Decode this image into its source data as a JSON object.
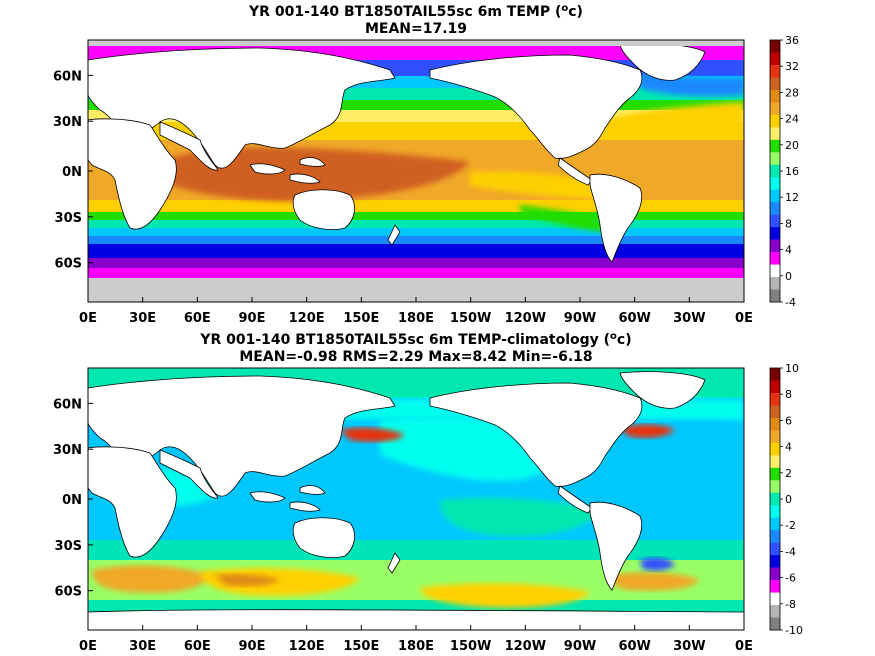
{
  "panels": [
    {
      "title_main": "YR 001-140 BT1850TAIL55sc 6m TEMP (",
      "title_sup": "o",
      "title_end": "c)",
      "stats": "MEAN=17.19",
      "y_ticks": [
        "60N",
        "30N",
        "0N",
        "30S",
        "60S"
      ],
      "x_ticks": [
        "0E",
        "30E",
        "60E",
        "90E",
        "120E",
        "150E",
        "180E",
        "150W",
        "120W",
        "90W",
        "60W",
        "30W",
        "0E"
      ],
      "colorbar_labels": [
        "36",
        "32",
        "28",
        "24",
        "20",
        "16",
        "12",
        "8",
        "4",
        "0",
        "-4"
      ],
      "colorbar_colors": [
        "#780000",
        "#c00000",
        "#e83010",
        "#d06020",
        "#e08a18",
        "#f0a828",
        "#ffd000",
        "#ffee66",
        "#22dd00",
        "#99ff66",
        "#00e8b0",
        "#00ffee",
        "#00c8ff",
        "#1a88ff",
        "#3050ff",
        "#0000e0",
        "#8800cc",
        "#ff00ff",
        "#ffffff",
        "#b4b4b4",
        "#808080"
      ],
      "land_color": "#ffffff",
      "ice_color": "#cccccc"
    },
    {
      "title_main": "YR 001-140 BT1850TAIL55sc 6m TEMP-climatology (",
      "title_sup": "o",
      "title_end": "c)",
      "stats": "MEAN=-0.98   RMS=2.29   Max=8.42   Min=-6.18",
      "y_ticks": [
        "60N",
        "30N",
        "0N",
        "30S",
        "60S"
      ],
      "x_ticks": [
        "0E",
        "30E",
        "60E",
        "90E",
        "120E",
        "150E",
        "180E",
        "150W",
        "120W",
        "90W",
        "60W",
        "30W",
        "0E"
      ],
      "colorbar_labels": [
        "10",
        "8",
        "6",
        "4",
        "2",
        "0",
        "-2",
        "-4",
        "-6",
        "-8",
        "-10"
      ],
      "colorbar_colors": [
        "#780000",
        "#c00000",
        "#e83010",
        "#d06020",
        "#e08a18",
        "#f0a828",
        "#ffd000",
        "#ffee66",
        "#22dd00",
        "#99ff66",
        "#00e8b0",
        "#00ffee",
        "#00c8ff",
        "#1a88ff",
        "#3050ff",
        "#0000e0",
        "#8800cc",
        "#ff00ff",
        "#ffffff",
        "#b4b4b4",
        "#808080"
      ],
      "land_color": "#ffffff"
    }
  ]
}
